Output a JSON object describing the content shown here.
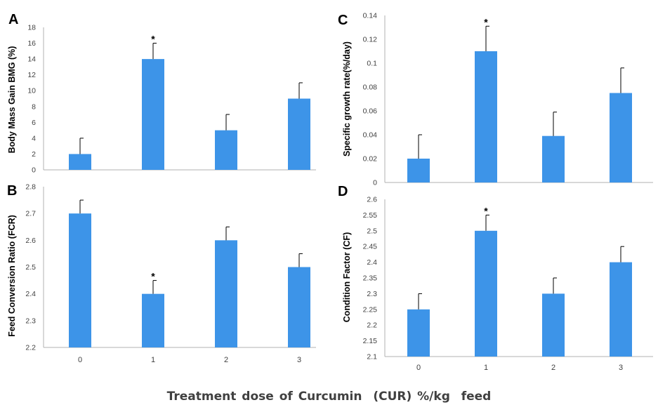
{
  "figure": {
    "common_xlabel": "Treatment dose of Curcumin  (CUR) %/kg  feed",
    "bar_color": "#3D94E8"
  },
  "chart_data": [
    {
      "panel": "A",
      "type": "bar",
      "ylabel": "Body Mass Gain BMG (%)",
      "categories": [
        "0",
        "1",
        "2",
        "3"
      ],
      "values": [
        2,
        14,
        5,
        9
      ],
      "errors": [
        2,
        2,
        2,
        2
      ],
      "significance": [
        "",
        "*",
        "",
        ""
      ],
      "ylim": [
        0,
        18
      ],
      "yticks": [
        "0",
        "2",
        "4",
        "6",
        "8",
        "10",
        "12",
        "14",
        "16",
        "18"
      ]
    },
    {
      "panel": "B",
      "type": "bar",
      "ylabel": "Feed Conversion Ratio (FCR)",
      "categories": [
        "0",
        "1",
        "2",
        "3"
      ],
      "values": [
        2.7,
        2.4,
        2.6,
        2.5
      ],
      "errors": [
        0.05,
        0.05,
        0.05,
        0.05
      ],
      "significance": [
        "",
        "*",
        "",
        ""
      ],
      "ylim": [
        2.2,
        2.8
      ],
      "yticks": [
        "2.2",
        "2.3",
        "2.4",
        "2.5",
        "2.6",
        "2.7",
        "2.8"
      ]
    },
    {
      "panel": "C",
      "type": "bar",
      "ylabel": "Specific growth rate(%/day)",
      "categories": [
        "0",
        "1",
        "2",
        "3"
      ],
      "values": [
        0.02,
        0.11,
        0.039,
        0.075
      ],
      "errors": [
        0.02,
        0.021,
        0.02,
        0.021
      ],
      "significance": [
        "",
        "*",
        "",
        ""
      ],
      "ylim": [
        0,
        0.14
      ],
      "yticks": [
        "0",
        "0.02",
        "0.04",
        "0.06",
        "0.08",
        "0.1",
        "0.12",
        "0.14"
      ]
    },
    {
      "panel": "D",
      "type": "bar",
      "ylabel": "Condition Factor (CF)",
      "categories": [
        "0",
        "1",
        "2",
        "3"
      ],
      "values": [
        2.25,
        2.5,
        2.3,
        2.4
      ],
      "errors": [
        0.05,
        0.05,
        0.05,
        0.05
      ],
      "significance": [
        "",
        "*",
        "",
        ""
      ],
      "ylim": [
        2.1,
        2.6
      ],
      "yticks": [
        "2.1",
        "2.15",
        "2.2",
        "2.25",
        "2.3",
        "2.35",
        "2.4",
        "2.45",
        "2.5",
        "2.55",
        "2.6"
      ]
    }
  ]
}
